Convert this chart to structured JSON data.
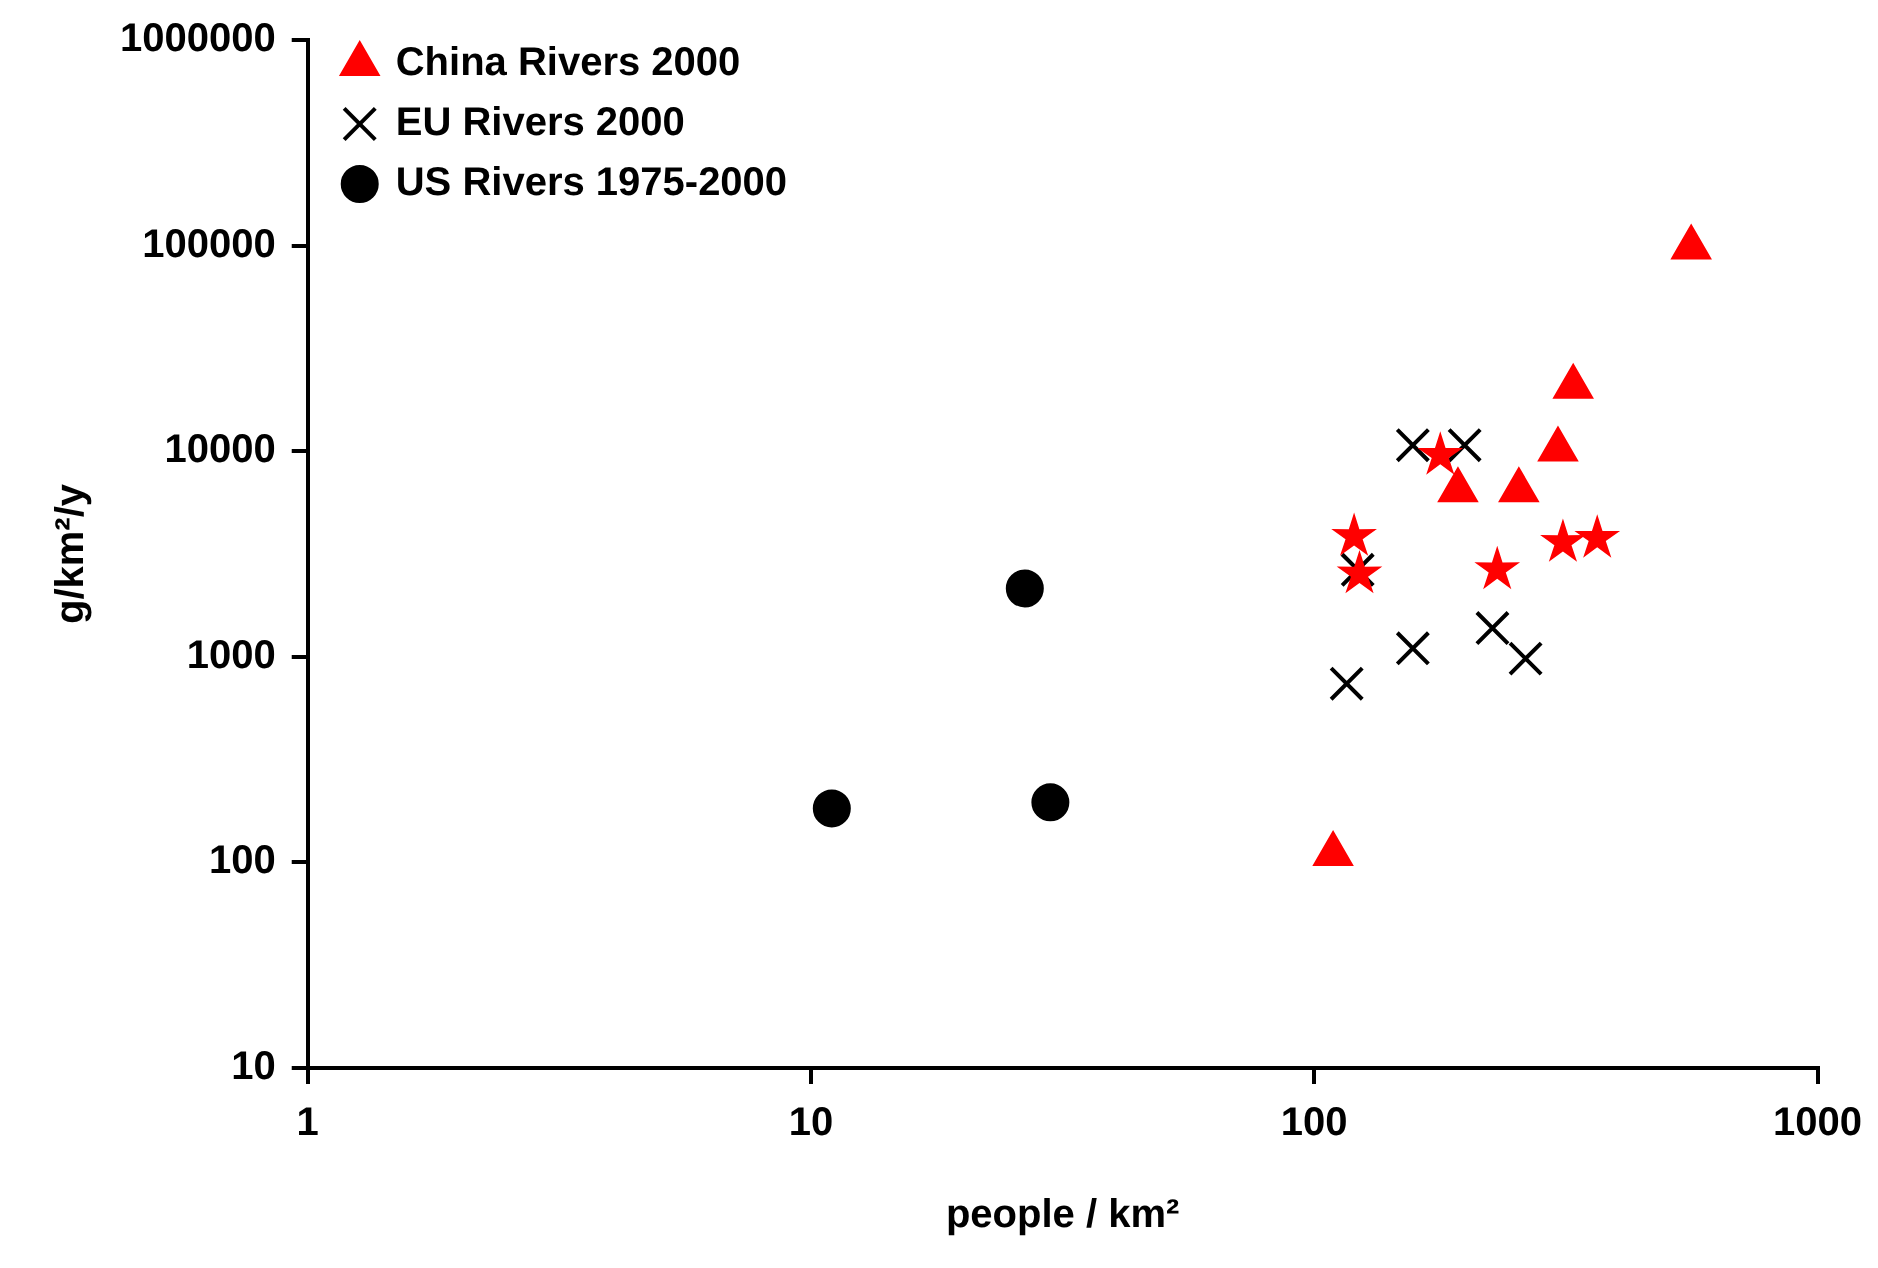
{
  "chart_data": {
    "type": "scatter",
    "xlabel": "people / km²",
    "ylabel": "g/km²/y",
    "log": "xy",
    "grid": false,
    "legend": "top left",
    "xlim": [
      1,
      1000
    ],
    "xticks": [
      1,
      10,
      100,
      1000
    ],
    "ylim": [
      10,
      1000000
    ],
    "yticks": [
      10,
      100,
      1000,
      10000,
      100000,
      1000000
    ],
    "series": [
      {
        "name": "China Rivers 2000",
        "color": "#ff0000",
        "marker": "triangle",
        "x": [
          109,
          561,
          327,
          305,
          193,
          255
        ],
        "values": [
          110,
          98000,
          20600,
          10200,
          6460,
          6460
        ]
      },
      {
        "name": "EU Rivers 2000",
        "color": "#000000",
        "marker": "cross",
        "x": [
          157,
          199,
          122,
          157,
          116,
          226,
          263
        ],
        "values": [
          10700,
          10700,
          2650,
          1100,
          740,
          1380,
          980
        ]
      },
      {
        "name": "US Rivers 1975-2000",
        "color": "#000000",
        "marker": "circle",
        "x": [
          11.0,
          26.6,
          29.9
        ],
        "values": [
          183,
          2150,
          196
        ]
      },
      {
        "color": "#ff0000",
        "marker": "star",
        "x": [
          178,
          120,
          123,
          231,
          312,
          365
        ],
        "values": [
          9550,
          3850,
          2530,
          2650,
          3600,
          3770
        ]
      }
    ]
  }
}
